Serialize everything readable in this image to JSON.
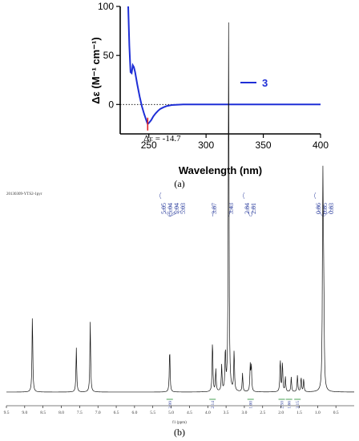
{
  "panel_a_label": "(a)",
  "panel_b_label": "(b)",
  "chart_data": [
    {
      "type": "line",
      "panel": "a",
      "title": "",
      "xlabel": "Wavelength (nm)",
      "ylabel": "Δε (M⁻¹ cm⁻¹)",
      "xlim": [
        225,
        400
      ],
      "ylim": [
        -30,
        100
      ],
      "x_ticks": [
        "250",
        "300",
        "350",
        "400"
      ],
      "y_ticks": [
        "100",
        "50",
        "0"
      ],
      "x_tick_values": [
        250,
        300,
        350,
        400
      ],
      "y_tick_values": [
        100,
        50,
        0
      ],
      "zero_line": "dotted",
      "color": "#1f2fd6",
      "annotation": {
        "text": "Δε = -14.7",
        "x": 249,
        "y": -20
      },
      "series": [
        {
          "name": "3",
          "x": [
            232,
            233,
            234,
            235,
            236,
            237,
            238,
            240,
            242,
            244,
            246,
            248,
            249,
            250,
            252,
            254,
            256,
            258,
            260,
            263,
            266,
            270,
            275,
            280,
            290,
            300,
            320,
            350,
            400
          ],
          "y": [
            100,
            60,
            33,
            32,
            40,
            38,
            33,
            20,
            8,
            -2,
            -10,
            -17,
            -20,
            -19,
            -16,
            -12,
            -9,
            -6.5,
            -4.5,
            -2.8,
            -1.5,
            -0.6,
            -0.2,
            0,
            0,
            0,
            0,
            0,
            0
          ]
        }
      ]
    },
    {
      "type": "line",
      "panel": "b",
      "title": "20130309-YTS2-1pyr",
      "xlabel": "f1 (ppm)",
      "ylabel": "",
      "xlim": [
        9.5,
        0.0
      ],
      "x_ticks": [
        "9.5",
        "9.0",
        "8.5",
        "8.0",
        "7.5",
        "7.0",
        "6.5",
        "6.0",
        "5.5",
        "5.0",
        "4.5",
        "4.0",
        "3.5",
        "3.0",
        "2.5",
        "2.0",
        "1.5",
        "1.0",
        "0.5"
      ],
      "x_tick_values": [
        9.5,
        9.0,
        8.5,
        8.0,
        7.5,
        7.0,
        6.5,
        6.0,
        5.5,
        5.0,
        4.5,
        4.0,
        3.5,
        3.0,
        2.5,
        2.0,
        1.5,
        1.0,
        0.5
      ],
      "color": "#111111",
      "peak_label_groups": [
        {
          "labels": [
            "5.05",
            "5.04",
            "5.04",
            "5.03"
          ],
          "ppm": [
            5.05,
            5.04,
            5.04,
            5.03
          ]
        },
        {
          "labels": [
            "3.87"
          ],
          "ppm": [
            3.87
          ]
        },
        {
          "labels": [
            "3.43"
          ],
          "ppm": [
            3.43
          ]
        },
        {
          "labels": [
            "2.84",
            "2.81"
          ],
          "ppm": [
            2.84,
            2.81
          ]
        },
        {
          "labels": [
            "0.86",
            "0.85",
            "0.83"
          ],
          "ppm": [
            0.86,
            0.85,
            0.83
          ]
        }
      ],
      "integrations": [
        {
          "label": "2.99",
          "ppm": 5.04
        },
        {
          "label": "2.14",
          "ppm": 3.87
        },
        {
          "label": "1.00",
          "ppm": 2.83
        },
        {
          "label": "2.50",
          "ppm": 1.98
        },
        {
          "label": "1.66",
          "ppm": 1.78
        },
        {
          "label": "3.15",
          "ppm": 1.55
        }
      ],
      "peaks": [
        {
          "ppm": 8.79,
          "height": 0.21
        },
        {
          "ppm": 7.59,
          "height": 0.12
        },
        {
          "ppm": 7.21,
          "height": 0.19
        },
        {
          "ppm": 5.04,
          "height": 0.12
        },
        {
          "ppm": 3.87,
          "height": 0.14
        },
        {
          "ppm": 3.78,
          "height": 0.06
        },
        {
          "ppm": 3.62,
          "height": 0.07
        },
        {
          "ppm": 3.52,
          "height": 0.11
        },
        {
          "ppm": 3.43,
          "height": 1.0
        },
        {
          "ppm": 3.28,
          "height": 0.11
        },
        {
          "ppm": 3.05,
          "height": 0.05
        },
        {
          "ppm": 2.84,
          "height": 0.07
        },
        {
          "ppm": 2.81,
          "height": 0.07
        },
        {
          "ppm": 2.02,
          "height": 0.09
        },
        {
          "ppm": 1.96,
          "height": 0.08
        },
        {
          "ppm": 1.88,
          "height": 0.04
        },
        {
          "ppm": 1.72,
          "height": 0.04
        },
        {
          "ppm": 1.55,
          "height": 0.045
        },
        {
          "ppm": 1.45,
          "height": 0.04
        },
        {
          "ppm": 1.38,
          "height": 0.035
        },
        {
          "ppm": 0.86,
          "height": 0.37
        },
        {
          "ppm": 0.85,
          "height": 0.3
        },
        {
          "ppm": 0.83,
          "height": 0.22
        }
      ]
    }
  ]
}
